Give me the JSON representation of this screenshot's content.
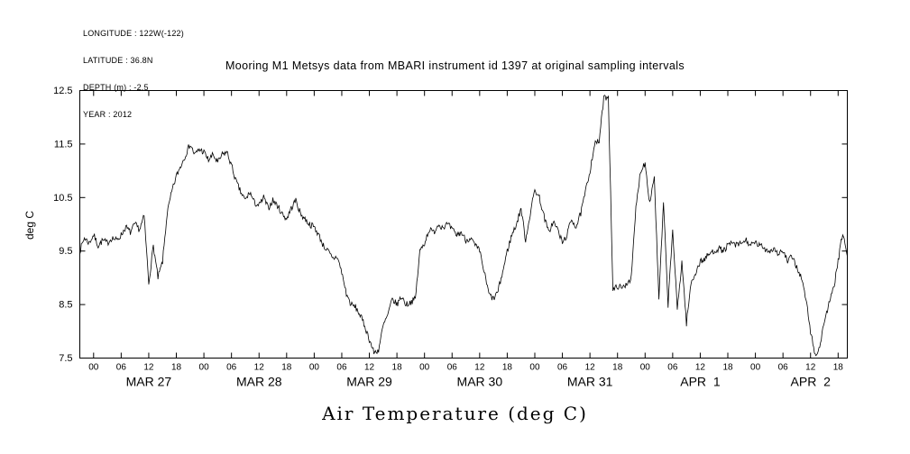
{
  "meta": {
    "longitude": "LONGITUDE : 122W(-122)",
    "latitude": "LATITUDE : 36.8N",
    "depth": "DEPTH (m) : -2.5",
    "year": "YEAR : 2012"
  },
  "chart_data": {
    "type": "line",
    "title": "Mooring M1 Metsys data from MBARI instrument id 1397 at original sampling intervals",
    "xlabel": "Air Temperature (deg C)",
    "ylabel": "deg C",
    "ylim": [
      7.5,
      12.5
    ],
    "y_ticks": [
      7.5,
      8.5,
      9.5,
      10.5,
      11.5,
      12.5
    ],
    "y_tick_labels": [
      "7.5",
      "8.5",
      "9.5",
      "10.5",
      "11.5",
      "12.5"
    ],
    "grid": false,
    "legend": "none",
    "line_color": "#000000",
    "background": "#ffffff",
    "x_axis": {
      "unit": "hours",
      "hours_total": 167,
      "first_tick_hour": 3,
      "tick_every_hours": 6,
      "tick_label_cycle": [
        "00",
        "06",
        "12",
        "18"
      ],
      "day_labels": [
        {
          "label": "MAR 27",
          "hour": 15
        },
        {
          "label": "MAR 28",
          "hour": 39
        },
        {
          "label": "MAR 29",
          "hour": 63
        },
        {
          "label": "MAR 30",
          "hour": 87
        },
        {
          "label": "MAR 31",
          "hour": 111
        },
        {
          "label": "APR  1",
          "hour": 135
        },
        {
          "label": "APR  2",
          "hour": 159
        }
      ]
    },
    "series": [
      {
        "name": "Air Temperature",
        "x0_hour": 0,
        "x_step_hours": 1,
        "values": [
          9.5,
          9.75,
          9.65,
          9.8,
          9.6,
          9.7,
          9.65,
          9.75,
          9.7,
          9.8,
          9.95,
          9.85,
          10.0,
          9.9,
          10.15,
          8.9,
          9.6,
          9.0,
          9.3,
          10.2,
          10.6,
          10.9,
          11.1,
          11.3,
          11.5,
          11.3,
          11.4,
          11.35,
          11.2,
          11.3,
          11.15,
          11.3,
          11.35,
          11.1,
          10.8,
          10.6,
          10.45,
          10.6,
          10.4,
          10.35,
          10.5,
          10.3,
          10.45,
          10.35,
          10.2,
          10.1,
          10.3,
          10.45,
          10.2,
          10.1,
          10.0,
          9.95,
          9.8,
          9.6,
          9.5,
          9.35,
          9.4,
          9.1,
          8.7,
          8.5,
          8.45,
          8.3,
          8.1,
          7.85,
          7.6,
          7.65,
          8.1,
          8.3,
          8.6,
          8.5,
          8.65,
          8.5,
          8.55,
          8.6,
          9.5,
          9.65,
          9.9,
          9.85,
          10.0,
          9.95,
          10.0,
          9.9,
          9.8,
          9.85,
          9.7,
          9.75,
          9.6,
          9.5,
          9.1,
          8.7,
          8.6,
          8.75,
          9.1,
          9.5,
          9.8,
          10.0,
          10.3,
          9.7,
          10.2,
          10.65,
          10.5,
          10.15,
          9.85,
          10.05,
          9.9,
          9.65,
          9.8,
          10.1,
          9.95,
          10.2,
          10.6,
          11.0,
          11.5,
          11.55,
          12.35,
          12.4,
          8.75,
          8.85,
          8.8,
          8.9,
          9.0,
          10.3,
          11.0,
          11.15,
          10.4,
          10.9,
          8.6,
          10.4,
          8.5,
          9.9,
          8.4,
          9.3,
          8.15,
          8.9,
          9.1,
          9.3,
          9.35,
          9.45,
          9.5,
          9.55,
          9.5,
          9.6,
          9.65,
          9.6,
          9.65,
          9.7,
          9.6,
          9.65,
          9.6,
          9.55,
          9.5,
          9.55,
          9.45,
          9.5,
          9.3,
          9.4,
          9.2,
          9.0,
          8.6,
          8.0,
          7.55,
          7.7,
          8.2,
          8.5,
          8.8,
          9.3,
          9.85,
          9.4
        ]
      }
    ],
    "render": {
      "noise_amplitude": 0.06,
      "samples_per_hour": 6,
      "seed": 7
    }
  }
}
